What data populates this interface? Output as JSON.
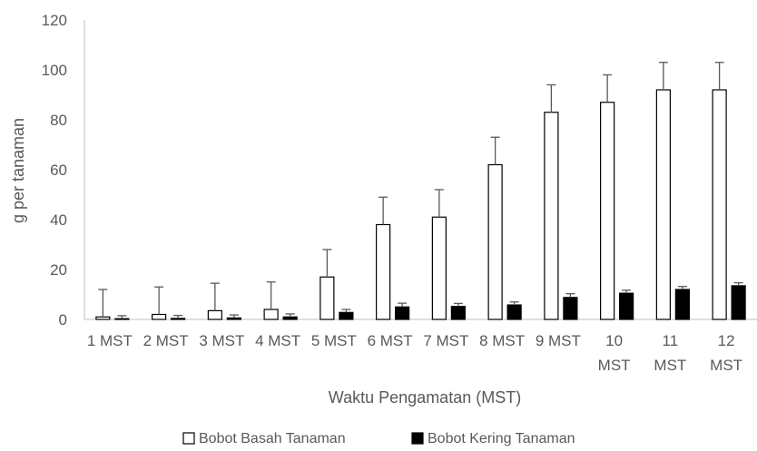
{
  "chart_data": {
    "type": "bar",
    "xlabel": "Waktu Pengamatan (MST)",
    "ylabel": "g per tanaman",
    "ylim": [
      0,
      120
    ],
    "yticks": [
      0,
      20,
      40,
      60,
      80,
      100,
      120
    ],
    "grid": false,
    "legend_position": "bottom",
    "categories": [
      [
        "1 MST"
      ],
      [
        "2 MST"
      ],
      [
        "3 MST"
      ],
      [
        "4 MST"
      ],
      [
        "5 MST"
      ],
      [
        "6 MST"
      ],
      [
        "7 MST"
      ],
      [
        "8 MST"
      ],
      [
        "9 MST"
      ],
      [
        "10",
        "MST"
      ],
      [
        "11",
        "MST"
      ],
      [
        "12",
        "MST"
      ]
    ],
    "series": [
      {
        "name": "Bobot Basah Tanaman",
        "fill": "#ffffff",
        "stroke": "#000000",
        "values": [
          1,
          2,
          3.5,
          4,
          17,
          38,
          41,
          62,
          83,
          87,
          92,
          92
        ],
        "error_plus": [
          11,
          11,
          11,
          11,
          11,
          11,
          11,
          11,
          11,
          11,
          11,
          11
        ]
      },
      {
        "name": "Bobot Kering Tanaman",
        "fill": "#000000",
        "stroke": "#000000",
        "values": [
          0.3,
          0.4,
          0.6,
          1,
          2.8,
          5,
          5.2,
          5.8,
          8.8,
          10.5,
          12,
          13.5
        ],
        "error_plus": [
          1.2,
          1.2,
          1.2,
          1.2,
          1.2,
          1.5,
          1.2,
          1.2,
          1.5,
          1.2,
          1.2,
          1.2
        ]
      }
    ]
  }
}
